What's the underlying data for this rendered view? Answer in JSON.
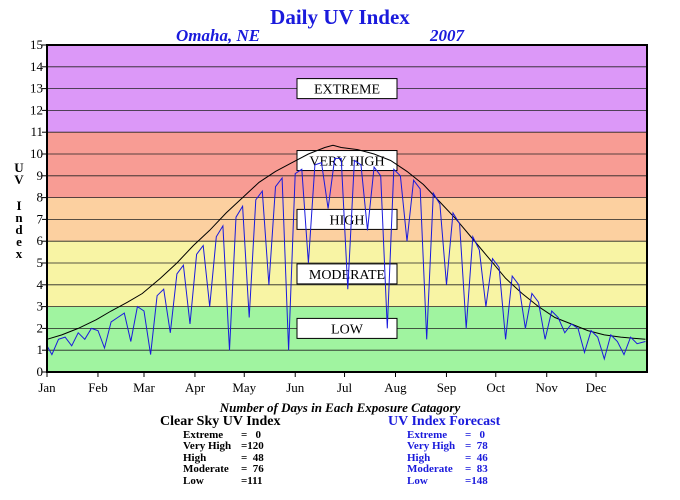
{
  "title": "Daily UV Index",
  "location": "Omaha, NE",
  "year": "2007",
  "footnote": "Number of Days in Each Exposure Catagory",
  "clear_sky": {
    "header": "Clear Sky UV Index",
    "rows": [
      {
        "label": "Extreme",
        "value": "=   0"
      },
      {
        "label": "Very High",
        "value": "=120"
      },
      {
        "label": "High",
        "value": "=  48"
      },
      {
        "label": "Moderate",
        "value": "=  76"
      },
      {
        "label": "Low",
        "value": "=111"
      }
    ]
  },
  "forecast": {
    "header": "UV Index Forecast",
    "rows": [
      {
        "label": "Extreme",
        "value": "=   0"
      },
      {
        "label": "Very High",
        "value": "=  78"
      },
      {
        "label": "High",
        "value": "=  46"
      },
      {
        "label": "Moderate",
        "value": "=  83"
      },
      {
        "label": "Low",
        "value": "=148"
      }
    ]
  },
  "chart_data": {
    "type": "line",
    "ylabel": "UV Index",
    "ylim": [
      0,
      15
    ],
    "yticks": [
      "0",
      "1",
      "2",
      "3",
      "4",
      "5",
      "6",
      "7",
      "8",
      "9",
      "10",
      "11",
      "12",
      "13",
      "14",
      "15"
    ],
    "x_categories": [
      "Jan",
      "Feb",
      "Mar",
      "Apr",
      "May",
      "Jun",
      "Jul",
      "Aug",
      "Sep",
      "Oct",
      "Nov",
      "Dec"
    ],
    "xlim_days": [
      1,
      366
    ],
    "bands": [
      {
        "name": "LOW",
        "from": 0,
        "to": 3,
        "color": "#a0f4a0"
      },
      {
        "name": "MODERATE",
        "from": 3,
        "to": 6,
        "color": "#f8f4a4"
      },
      {
        "name": "HIGH",
        "from": 6,
        "to": 8,
        "color": "#fcd0a0"
      },
      {
        "name": "VERY HIGH",
        "from": 8,
        "to": 11,
        "color": "#f89c94"
      },
      {
        "name": "EXTREME",
        "from": 11,
        "to": 15,
        "color": "#dc98f8"
      }
    ],
    "band_labels": [
      {
        "text": "EXTREME",
        "y": 13
      },
      {
        "text": "VERY HIGH",
        "y": 9.7
      },
      {
        "text": "HIGH",
        "y": 7
      },
      {
        "text": "MODERATE",
        "y": 4.5
      },
      {
        "text": "LOW",
        "y": 2
      }
    ],
    "series": [
      {
        "name": "Clear Sky UV Index",
        "color": "#000000",
        "x": [
          1,
          10,
          20,
          31,
          40,
          50,
          59,
          70,
          80,
          90,
          100,
          110,
          120,
          130,
          140,
          150,
          160,
          170,
          175,
          180,
          190,
          200,
          210,
          220,
          230,
          240,
          250,
          260,
          270,
          280,
          290,
          300,
          310,
          320,
          330,
          340,
          350,
          365
        ],
        "y": [
          1.5,
          1.7,
          2.0,
          2.4,
          2.8,
          3.2,
          3.6,
          4.3,
          5.0,
          5.8,
          6.5,
          7.3,
          8.0,
          8.7,
          9.2,
          9.6,
          10.0,
          10.3,
          10.4,
          10.3,
          10.2,
          10.0,
          9.7,
          9.2,
          8.6,
          7.8,
          7.0,
          6.1,
          5.2,
          4.3,
          3.6,
          3.0,
          2.5,
          2.2,
          1.9,
          1.7,
          1.6,
          1.5
        ]
      },
      {
        "name": "UV Index Forecast",
        "color": "#1a1adc",
        "x": [
          1,
          4,
          8,
          12,
          16,
          20,
          24,
          28,
          32,
          36,
          40,
          44,
          48,
          52,
          56,
          60,
          64,
          68,
          72,
          76,
          80,
          84,
          88,
          92,
          96,
          100,
          104,
          108,
          112,
          116,
          120,
          124,
          128,
          132,
          136,
          140,
          144,
          148,
          152,
          156,
          160,
          164,
          168,
          172,
          176,
          180,
          184,
          188,
          192,
          196,
          200,
          204,
          208,
          212,
          216,
          220,
          224,
          228,
          232,
          236,
          240,
          244,
          248,
          252,
          256,
          260,
          264,
          268,
          272,
          276,
          280,
          284,
          288,
          292,
          296,
          300,
          304,
          308,
          312,
          316,
          320,
          324,
          328,
          332,
          336,
          340,
          344,
          348,
          352,
          356,
          360,
          365
        ],
        "y": [
          1.2,
          0.8,
          1.5,
          1.6,
          1.2,
          1.8,
          1.5,
          2.0,
          1.9,
          1.1,
          2.3,
          2.5,
          2.7,
          1.4,
          3.0,
          2.8,
          0.8,
          3.5,
          3.8,
          1.8,
          4.5,
          4.9,
          2.2,
          5.4,
          5.8,
          3.0,
          6.2,
          6.7,
          1.0,
          7.1,
          7.6,
          2.5,
          7.9,
          8.3,
          4.0,
          8.5,
          8.9,
          1.0,
          9.1,
          9.3,
          5.0,
          9.5,
          9.6,
          7.5,
          9.8,
          9.8,
          3.8,
          9.7,
          9.5,
          6.5,
          9.4,
          9.0,
          2.0,
          9.3,
          9.0,
          6.0,
          8.8,
          8.4,
          1.5,
          8.2,
          7.7,
          4.0,
          7.3,
          6.8,
          2.0,
          6.2,
          5.6,
          3.0,
          5.2,
          4.8,
          1.5,
          4.4,
          4.0,
          2.0,
          3.6,
          3.2,
          1.5,
          2.8,
          2.5,
          1.8,
          2.2,
          2.0,
          0.9,
          1.9,
          1.6,
          0.6,
          1.7,
          1.4,
          0.8,
          1.6,
          1.3,
          1.4
        ]
      }
    ]
  }
}
